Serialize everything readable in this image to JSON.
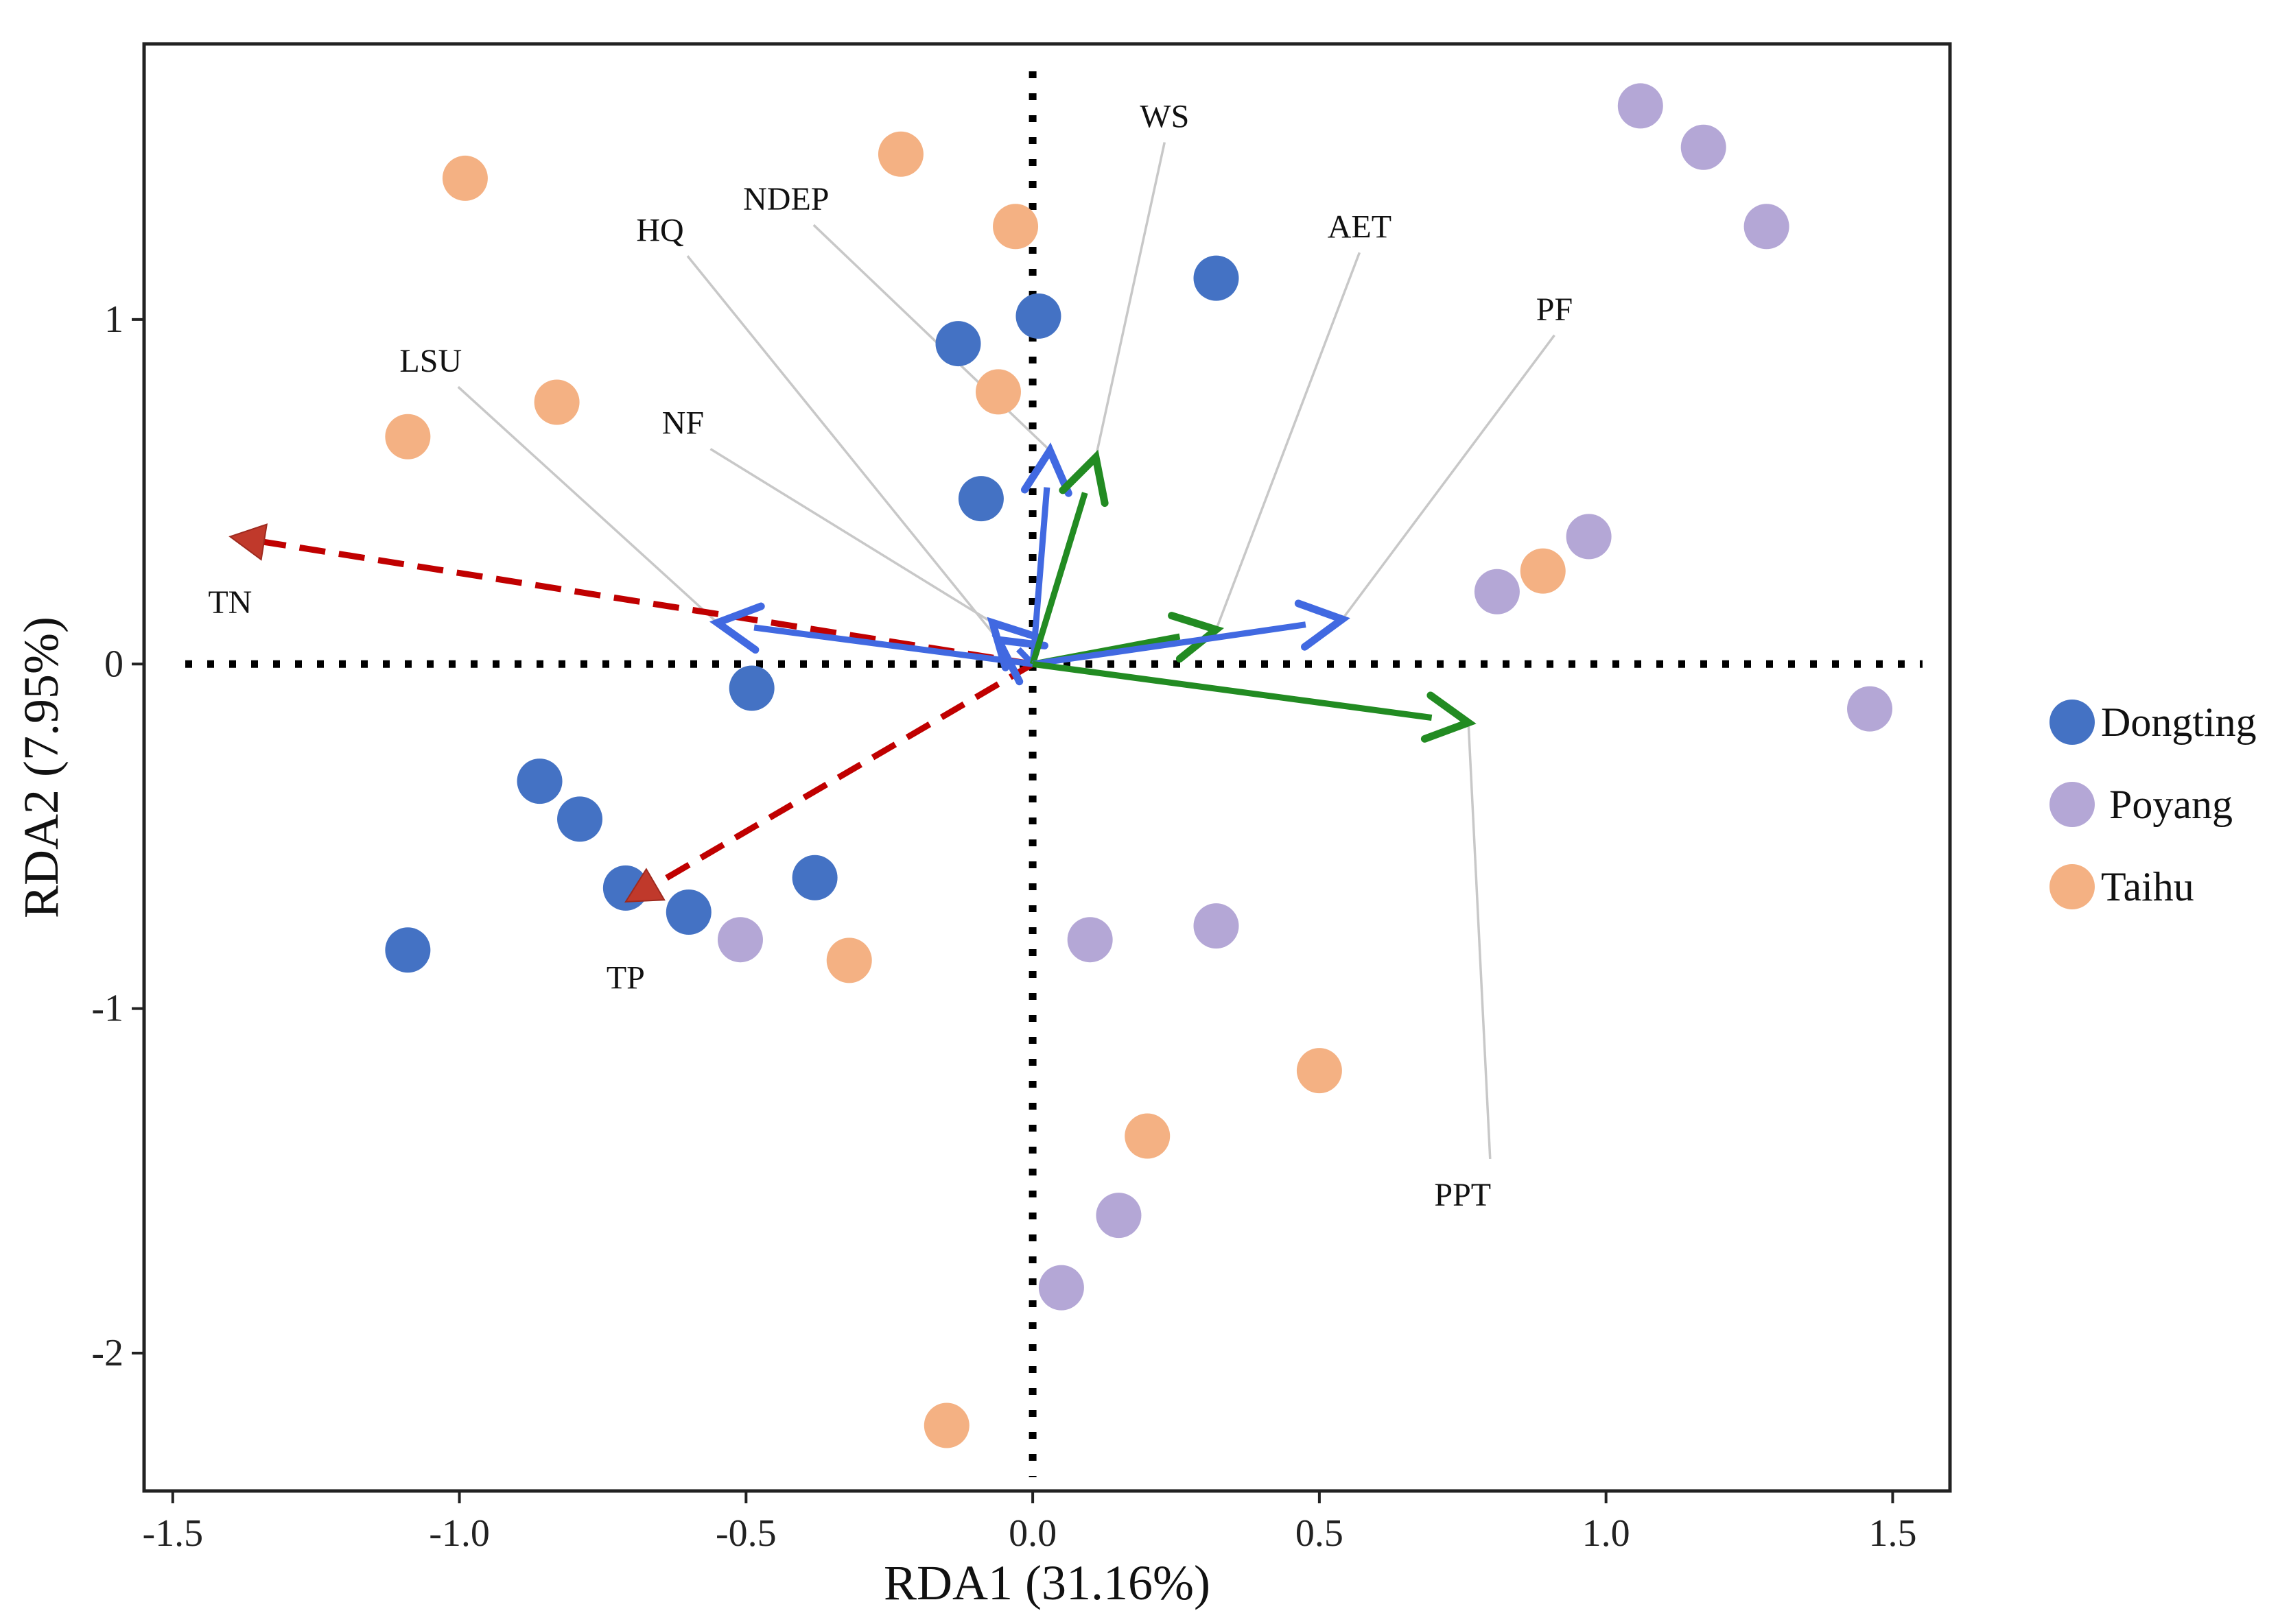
{
  "chart_data": {
    "type": "scatter",
    "subtype": "rda-biplot",
    "xlabel": "RDA1 (31.16%)",
    "ylabel": "RDA2 (7.95%)",
    "xlim": [
      -1.55,
      1.6
    ],
    "ylim": [
      -2.4,
      1.8
    ],
    "x_ticks": [
      -1.5,
      -1.0,
      -0.5,
      0.0,
      0.5,
      1.0,
      1.5
    ],
    "x_tick_labels": [
      "-1.5",
      "-1.0",
      "-0.5",
      "0.0",
      "0.5",
      "1.0",
      "1.5"
    ],
    "y_ticks": [
      -2,
      -1,
      0,
      1
    ],
    "y_tick_labels": [
      "-2",
      "-1",
      "0",
      "1"
    ],
    "reference_lines": {
      "x": 0,
      "y": 0,
      "style": "dotted"
    },
    "legend": {
      "position": "right"
    },
    "series": [
      {
        "name": "Dongting",
        "color": "#4472C4",
        "points": [
          [
            0.32,
            1.12
          ],
          [
            0.01,
            1.01
          ],
          [
            -0.13,
            0.93
          ],
          [
            -0.09,
            0.48
          ],
          [
            -0.49,
            -0.07
          ],
          [
            -0.86,
            -0.34
          ],
          [
            -0.79,
            -0.45
          ],
          [
            -0.71,
            -0.65
          ],
          [
            -0.6,
            -0.72
          ],
          [
            -0.38,
            -0.62
          ],
          [
            -1.09,
            -0.83
          ]
        ]
      },
      {
        "name": "Poyang",
        "color": "#B4A7D6",
        "points": [
          [
            1.06,
            1.62
          ],
          [
            1.17,
            1.5
          ],
          [
            1.28,
            1.27
          ],
          [
            0.97,
            0.37
          ],
          [
            0.81,
            0.21
          ],
          [
            1.46,
            -0.13
          ],
          [
            -0.51,
            -0.8
          ],
          [
            0.1,
            -0.8
          ],
          [
            0.32,
            -0.76
          ],
          [
            0.15,
            -1.6
          ],
          [
            0.05,
            -1.81
          ]
        ]
      },
      {
        "name": "Taihu",
        "color": "#F4B183",
        "points": [
          [
            -0.99,
            1.41
          ],
          [
            -0.23,
            1.48
          ],
          [
            -0.03,
            1.27
          ],
          [
            -0.06,
            0.79
          ],
          [
            -0.83,
            0.76
          ],
          [
            -1.09,
            0.66
          ],
          [
            0.89,
            0.27
          ],
          [
            -0.32,
            -0.86
          ],
          [
            0.5,
            -1.18
          ],
          [
            0.2,
            -1.37
          ],
          [
            -0.15,
            -2.21
          ]
        ]
      }
    ],
    "arrows": [
      {
        "name": "TN",
        "x": -1.4,
        "y": 0.37,
        "color": "#C00000",
        "style": "dashed",
        "label_x": -1.4,
        "label_y": 0.18,
        "leader": false
      },
      {
        "name": "TP",
        "x": -0.71,
        "y": -0.69,
        "color": "#C00000",
        "style": "dashed",
        "label_x": -0.71,
        "label_y": -0.91,
        "leader": false
      },
      {
        "name": "LSU",
        "x": -0.55,
        "y": 0.12,
        "color": "#4169E1",
        "style": "solid",
        "label_x": -1.05,
        "label_y": 0.88,
        "leader": true
      },
      {
        "name": "NF",
        "x": -0.07,
        "y": 0.12,
        "color": "#4169E1",
        "style": "solid",
        "label_x": -0.61,
        "label_y": 0.7,
        "leader": true
      },
      {
        "name": "HQ",
        "x": -0.06,
        "y": 0.07,
        "color": "#4169E1",
        "style": "solid",
        "label_x": -0.65,
        "label_y": 1.26,
        "leader": true
      },
      {
        "name": "NDEP",
        "x": 0.03,
        "y": 0.62,
        "color": "#4169E1",
        "style": "solid",
        "label_x": -0.43,
        "label_y": 1.35,
        "leader": true
      },
      {
        "name": "WS",
        "x": 0.11,
        "y": 0.6,
        "color": "#228B22",
        "style": "solid",
        "label_x": 0.23,
        "label_y": 1.59,
        "leader": true
      },
      {
        "name": "AET",
        "x": 0.32,
        "y": 0.1,
        "color": "#228B22",
        "style": "solid",
        "label_x": 0.57,
        "label_y": 1.27,
        "leader": true
      },
      {
        "name": "PF",
        "x": 0.54,
        "y": 0.13,
        "color": "#4169E1",
        "style": "solid",
        "label_x": 0.91,
        "label_y": 1.03,
        "leader": true
      },
      {
        "name": "PPT",
        "x": 0.76,
        "y": -0.17,
        "color": "#228B22",
        "style": "solid",
        "label_x": 0.75,
        "label_y": -1.54,
        "leader": true
      }
    ]
  }
}
